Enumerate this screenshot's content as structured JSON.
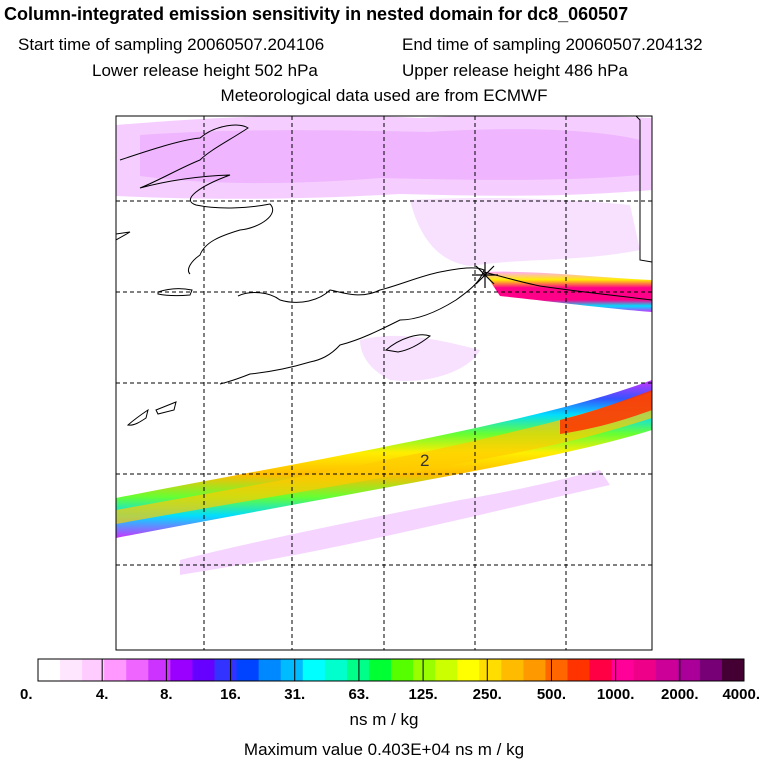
{
  "header": {
    "title": "Column-integrated emission sensitivity in nested domain for dc8_060507",
    "start_label": "Start time of sampling 20060507.204106",
    "end_label": "End time of sampling 20060507.204132",
    "lower_label": "Lower release height  502 hPa",
    "upper_label": "Upper release height  486 hPa",
    "met_label": "Meteorological data used are from ECMWF"
  },
  "chart_data": {
    "type": "heatmap",
    "title": "Column-integrated emission sensitivity in nested domain for dc8_060507",
    "contour_label": "2",
    "colorbar": {
      "tick_labels": [
        "0.",
        "4.",
        "8.",
        "16.",
        "31.",
        "63.",
        "125.",
        "250.",
        "500.",
        "1000.",
        "2000.",
        "4000."
      ],
      "colors": [
        "#ffffff",
        "#ffe6ff",
        "#ffccff",
        "#ff99ff",
        "#ee66ff",
        "#cc33ff",
        "#9900ff",
        "#6600ff",
        "#3333ff",
        "#0044ff",
        "#0088ff",
        "#00bbff",
        "#00ffff",
        "#00ffcc",
        "#00ff88",
        "#00ff33",
        "#55ff00",
        "#99ff00",
        "#ccff00",
        "#ffff00",
        "#ffdd00",
        "#ffbb00",
        "#ff9900",
        "#ff6600",
        "#ff3300",
        "#ff0044",
        "#ff0099",
        "#ee0088",
        "#cc0099",
        "#aa0099",
        "#770077",
        "#440033"
      ],
      "unit": "ns m / kg"
    },
    "max_value_label": "Maximum value  0.403E+04 ns m / kg"
  }
}
